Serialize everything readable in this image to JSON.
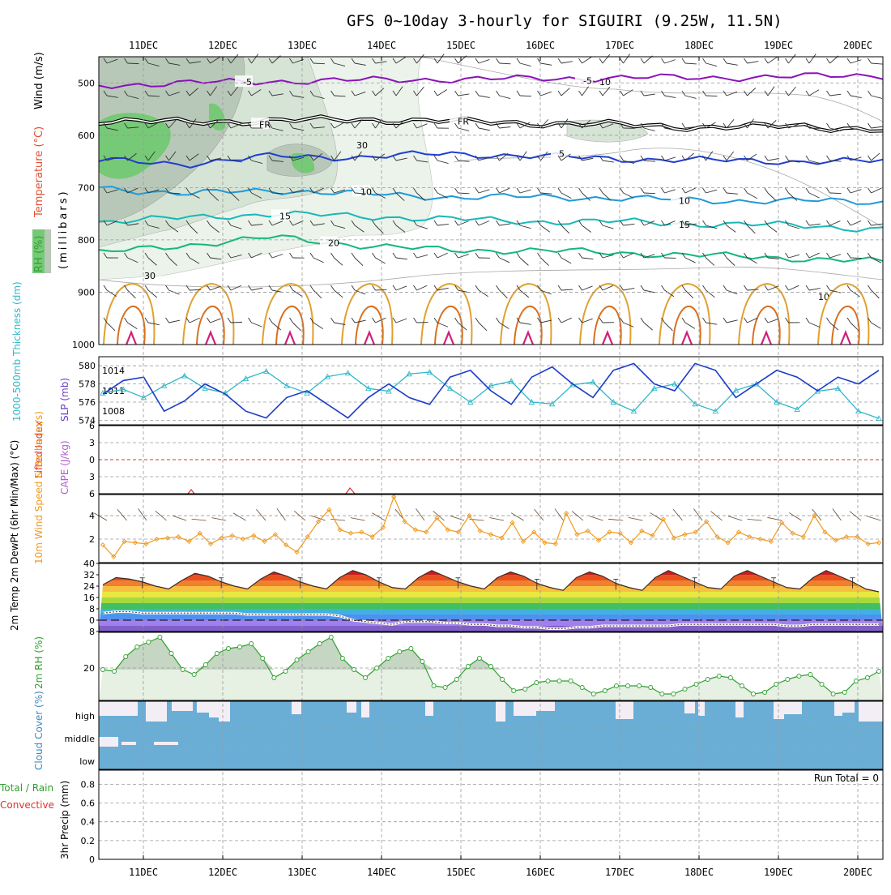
{
  "title": "GFS 0~10day 3-hourly for SIGUIRI (9.25W, 11.5N)",
  "date_labels": [
    "11DEC",
    "12DEC",
    "13DEC",
    "14DEC",
    "15DEC",
    "16DEC",
    "17DEC",
    "18DEC",
    "19DEC",
    "20DEC"
  ],
  "run_total": "Run Total = 0",
  "colors": {
    "rh_dark": "#b8c8b8",
    "rh_mid": "#d6e4d6",
    "rh_light": "#ebf3eb",
    "rh_green": "#76c976",
    "temp_m5": "#8a12b8",
    "temp_fr": "#000000",
    "temp_5": "#1f3fd0",
    "temp_10": "#1f9ad8",
    "temp_15": "#18b8b8",
    "temp_20": "#14b87a",
    "warm": "#e0a030",
    "warm2": "#d87020",
    "hot": "#d0207a",
    "thickness": "#30b8c8",
    "slp": "#1a3cc8",
    "wind10": "#f09a20",
    "lifted": "#e03030",
    "cape": "#b060d0",
    "rh2m": "#30a030",
    "cloud": "#6aaed6"
  },
  "chart_data": [
    {
      "type": "contour",
      "panel": "upper-air",
      "ylabel_parts": [
        "RH (%)",
        "Temperature (°C)",
        "Wind (m/s)"
      ],
      "yunit": "(millibars)",
      "y_ticks": [
        500,
        600,
        700,
        800,
        900,
        1000
      ],
      "ylim": [
        1000,
        450
      ],
      "temperature_isotherms": [
        {
          "label": "-5",
          "pressure": [
            505,
            500,
            497,
            495,
            493,
            492,
            490,
            490,
            488,
            485
          ]
        },
        {
          "label": "FR",
          "pressure": [
            572,
            575,
            572,
            570,
            573,
            577,
            580,
            585,
            582,
            590
          ]
        },
        {
          "label": "5",
          "pressure": [
            648,
            655,
            640,
            642,
            635,
            640,
            645,
            648,
            650,
            650
          ]
        },
        {
          "label": "10",
          "pressure": [
            700,
            712,
            705,
            712,
            718,
            718,
            720,
            725,
            725,
            728
          ]
        },
        {
          "label": "15",
          "pressure": [
            765,
            758,
            750,
            755,
            760,
            765,
            765,
            770,
            772,
            780
          ]
        },
        {
          "label": "20",
          "pressure": [
            825,
            810,
            795,
            810,
            820,
            820,
            825,
            830,
            835,
            842
          ]
        }
      ],
      "rh_labels": [
        "30",
        "10"
      ]
    },
    {
      "type": "line",
      "panel": "thickness-slp",
      "y_left_label": "1000-500mb Thickness (dm)",
      "y_right_label": "SLP (mb)",
      "y_left_ticks": [
        574,
        576,
        578,
        580
      ],
      "y_right_ticks": [
        1008,
        1011,
        1014
      ],
      "ylim_left": [
        573.5,
        581
      ],
      "ylim_right": [
        1006,
        1016
      ],
      "series": [
        {
          "name": "thickness",
          "values": [
            577,
            577.4,
            576.5,
            577.8,
            578.9,
            577.5,
            577,
            578.6,
            579.4,
            577.8,
            577,
            578.8,
            579.2,
            577.5,
            577.2,
            579.1,
            579.3,
            577.5,
            576,
            577.8,
            578.3,
            576,
            575.8,
            577.9,
            578.2,
            576,
            575,
            577.5,
            578,
            575.8,
            575,
            577.3,
            578,
            576,
            575.2,
            577.2,
            577.5,
            575,
            574.2
          ]
        },
        {
          "name": "slp",
          "values": [
            1010.5,
            1012.5,
            1013,
            1008,
            1009.5,
            1012,
            1010.5,
            1008,
            1007,
            1010,
            1011,
            1009,
            1007,
            1010,
            1012,
            1010,
            1009,
            1013,
            1014,
            1011,
            1009,
            1013,
            1014.5,
            1012,
            1010,
            1014,
            1015,
            1012,
            1011,
            1015,
            1014,
            1010,
            1012,
            1014,
            1013,
            1011,
            1013,
            1012,
            1014
          ]
        }
      ]
    },
    {
      "type": "line",
      "panel": "lifted-cape",
      "y_left_label": "Lifted Index",
      "y_right_label": "CAPE (J/kg)",
      "y_ticks": [
        -6,
        -3,
        0,
        3,
        6
      ],
      "ylim": [
        6,
        -6
      ]
    },
    {
      "type": "line",
      "panel": "wind10m",
      "ylabel": "10m Wind Speed & Barbs (m/s)",
      "y_ticks": [
        2,
        4
      ],
      "ylim": [
        0,
        5.8
      ],
      "values": [
        1.5,
        0.5,
        1.8,
        1.7,
        1.6,
        2,
        2.1,
        2.2,
        1.8,
        2.5,
        1.6,
        2.1,
        2.3,
        2,
        2.3,
        1.8,
        2.4,
        1.5,
        0.9,
        2.2,
        3.5,
        4.5,
        2.8,
        2.5,
        2.6,
        2.2,
        3,
        5.6,
        3.5,
        2.8,
        2.6,
        3.8,
        2.8,
        2.6,
        4,
        2.7,
        2.4,
        2.1,
        3.4,
        1.8,
        2.6,
        1.7,
        1.6,
        4.2,
        2.4,
        2.7,
        1.9,
        2.6,
        2.5,
        1.7,
        2.7,
        2.3,
        3.7,
        2.1,
        2.4,
        2.6,
        3.5,
        2.2,
        1.7,
        2.6,
        2.2,
        2,
        1.8,
        3.4,
        2.5,
        2.2,
        4,
        2.6,
        1.9,
        2.2,
        2.2,
        1.6,
        1.7
      ]
    },
    {
      "type": "area",
      "panel": "temp2m",
      "ylabel": "2m Temp 2m DewPt (6hr Min/Max) (°C)",
      "y_ticks": [
        -8,
        0,
        8,
        16,
        24,
        32,
        40
      ],
      "ylim": [
        -8,
        40
      ],
      "temperature": [
        25,
        30,
        29,
        27,
        24,
        22,
        28,
        33,
        31,
        27,
        24,
        22,
        29,
        34,
        31,
        27,
        24,
        22,
        30,
        35,
        32,
        27,
        23,
        22,
        30,
        35,
        31,
        27,
        24,
        22,
        30,
        34,
        31,
        26,
        23,
        21,
        30,
        34,
        31,
        26,
        23,
        21,
        30,
        35,
        31,
        27,
        23,
        22,
        31,
        35,
        31,
        27,
        23,
        22,
        30,
        35,
        31,
        27,
        22,
        20
      ],
      "dewpoint": [
        5,
        6,
        6,
        5,
        5,
        5,
        5,
        5,
        5,
        5,
        5,
        4,
        4,
        4,
        4,
        4,
        4,
        4,
        3,
        0,
        -1,
        -2,
        -3,
        -1,
        -1,
        -1,
        -2,
        -2,
        -3,
        -3,
        -4,
        -4,
        -5,
        -5,
        -6,
        -6,
        -5,
        -5,
        -4,
        -4,
        -4,
        -4,
        -4,
        -4,
        -3,
        -3,
        -3,
        -3,
        -3,
        -3,
        -3,
        -3,
        -4,
        -4,
        -3,
        -3,
        -3,
        -3,
        -3,
        -3
      ]
    },
    {
      "type": "area",
      "panel": "rh2m",
      "ylabel": "2m RH (%)",
      "y_ticks": [
        20
      ],
      "ylim": [
        0,
        42
      ],
      "values": [
        19,
        18,
        27,
        33,
        36,
        39,
        29,
        19,
        16,
        22,
        29,
        32,
        33,
        35,
        26,
        14,
        18,
        25,
        30,
        35,
        39,
        26,
        19,
        14,
        20,
        26,
        30,
        32,
        24,
        9,
        8,
        13,
        21,
        26,
        21,
        13,
        6,
        7,
        11,
        12,
        12,
        12,
        8,
        4,
        6,
        9,
        9,
        9,
        8,
        4,
        4,
        7,
        10,
        13,
        15,
        14,
        9,
        4,
        5,
        10,
        13,
        15,
        16,
        10,
        4,
        5,
        12,
        14,
        18
      ]
    },
    {
      "type": "bar",
      "panel": "cloud",
      "ylabel": "Cloud Cover (%)",
      "levels": [
        "high",
        "middle",
        "low"
      ]
    },
    {
      "type": "bar",
      "panel": "precip",
      "ylabel_parts": [
        "Total / Rain",
        "Convective",
        "3hr Precip (mm)"
      ],
      "y_ticks": [
        0,
        0.2,
        0.4,
        0.6,
        0.8
      ],
      "ylim": [
        0,
        0.95
      ],
      "values": []
    }
  ]
}
